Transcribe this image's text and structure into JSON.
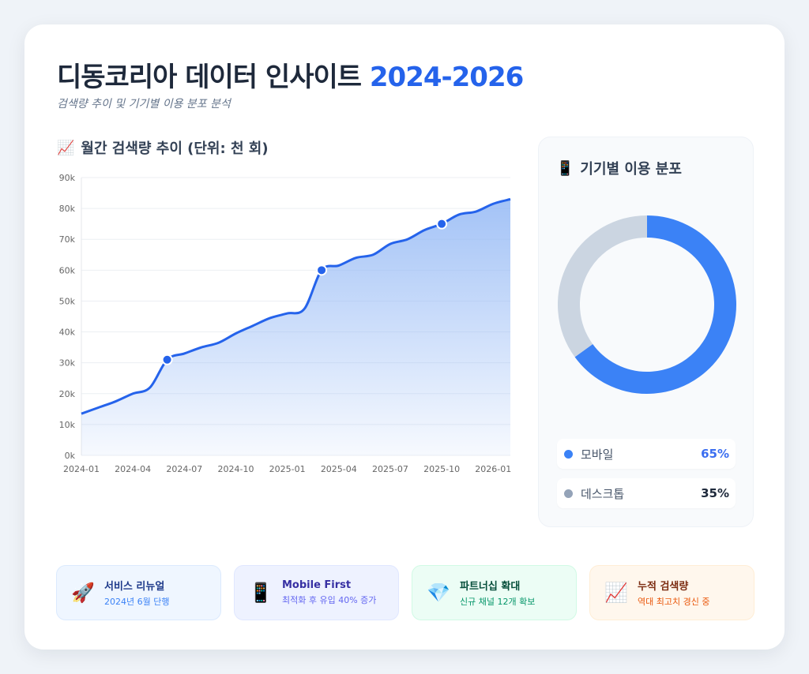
{
  "header": {
    "title": "디동코리아 데이터 인사이트",
    "title_year": "2024-2026",
    "subtitle": "검색량 추이 및 기기별 이용 분포 분석"
  },
  "line_section": {
    "icon": "📈",
    "title": "월간 검색량 추이 (단위: 천 회)"
  },
  "device_section": {
    "icon": "📱",
    "title": "기기별 이용 분포"
  },
  "chart_data": [
    {
      "type": "area",
      "title": "월간 검색량 추이 (단위: 천 회)",
      "ylim": [
        0,
        90
      ],
      "y_ticks": [
        "0k",
        "10k",
        "20k",
        "30k",
        "40k",
        "50k",
        "60k",
        "70k",
        "80k",
        "90k"
      ],
      "x_ticks": [
        "2024-01",
        "2024-04",
        "2024-07",
        "2024-10",
        "2025-01",
        "2025-04",
        "2025-07",
        "2025-10",
        "2026-01"
      ],
      "x": [
        "2024-01",
        "2024-02",
        "2024-03",
        "2024-04",
        "2024-05",
        "2024-06",
        "2024-07",
        "2024-08",
        "2024-09",
        "2024-10",
        "2024-11",
        "2024-12",
        "2025-01",
        "2025-02",
        "2025-03",
        "2025-04",
        "2025-05",
        "2025-06",
        "2025-07",
        "2025-08",
        "2025-09",
        "2025-10",
        "2025-11",
        "2025-12",
        "2026-01",
        "2026-02"
      ],
      "values": [
        13.5,
        15.5,
        17.5,
        20,
        22,
        31,
        33,
        35,
        36.5,
        39.5,
        42,
        44.5,
        46,
        47.5,
        60,
        61.5,
        64,
        65,
        68.5,
        70,
        73,
        75,
        78,
        79,
        81.5,
        83
      ],
      "highlighted": [
        "2024-06",
        "2025-03",
        "2025-10"
      ],
      "grid": true,
      "line_color": "#2563eb",
      "fill_color": "#93b8f5"
    },
    {
      "type": "pie",
      "donut": true,
      "categories": [
        "모바일",
        "데스크톱"
      ],
      "values": [
        65,
        35
      ],
      "colors": [
        "#3b82f6",
        "#cbd5e1"
      ]
    }
  ],
  "legend": [
    {
      "label": "모바일",
      "value": "65%",
      "dot": "#3b82f6",
      "value_color": "#3b6ef0"
    },
    {
      "label": "데스크톱",
      "value": "35%",
      "dot": "#94a3b8",
      "value_color": "#1e293b"
    }
  ],
  "highlights": [
    {
      "icon": "🚀",
      "icon_name": "rocket-icon",
      "title": "서비스 리뉴얼",
      "desc": "2024년 6월 단행",
      "bg": "#eff6ff",
      "border": "#dbeafe",
      "title_color": "#1e3a8a",
      "desc_color": "#3b82f6"
    },
    {
      "icon": "📱",
      "icon_name": "mobile-phone-icon",
      "title": "Mobile First",
      "desc": "최적화 후 유입 40% 증가",
      "bg": "#eef2ff",
      "border": "#e0e7ff",
      "title_color": "#3730a3",
      "desc_color": "#6366f1"
    },
    {
      "icon": "💎",
      "icon_name": "gem-icon",
      "title": "파트너십 확대",
      "desc": "신규 채널 12개 확보",
      "bg": "#ecfdf5",
      "border": "#d1fae5",
      "title_color": "#064e3b",
      "desc_color": "#059669"
    },
    {
      "icon": "📈",
      "icon_name": "chart-increasing-icon",
      "title": "누적 검색량",
      "desc": "역대 최고치 경신 중",
      "bg": "#fff7ed",
      "border": "#ffedd5",
      "title_color": "#7c2d12",
      "desc_color": "#ea580c"
    }
  ]
}
